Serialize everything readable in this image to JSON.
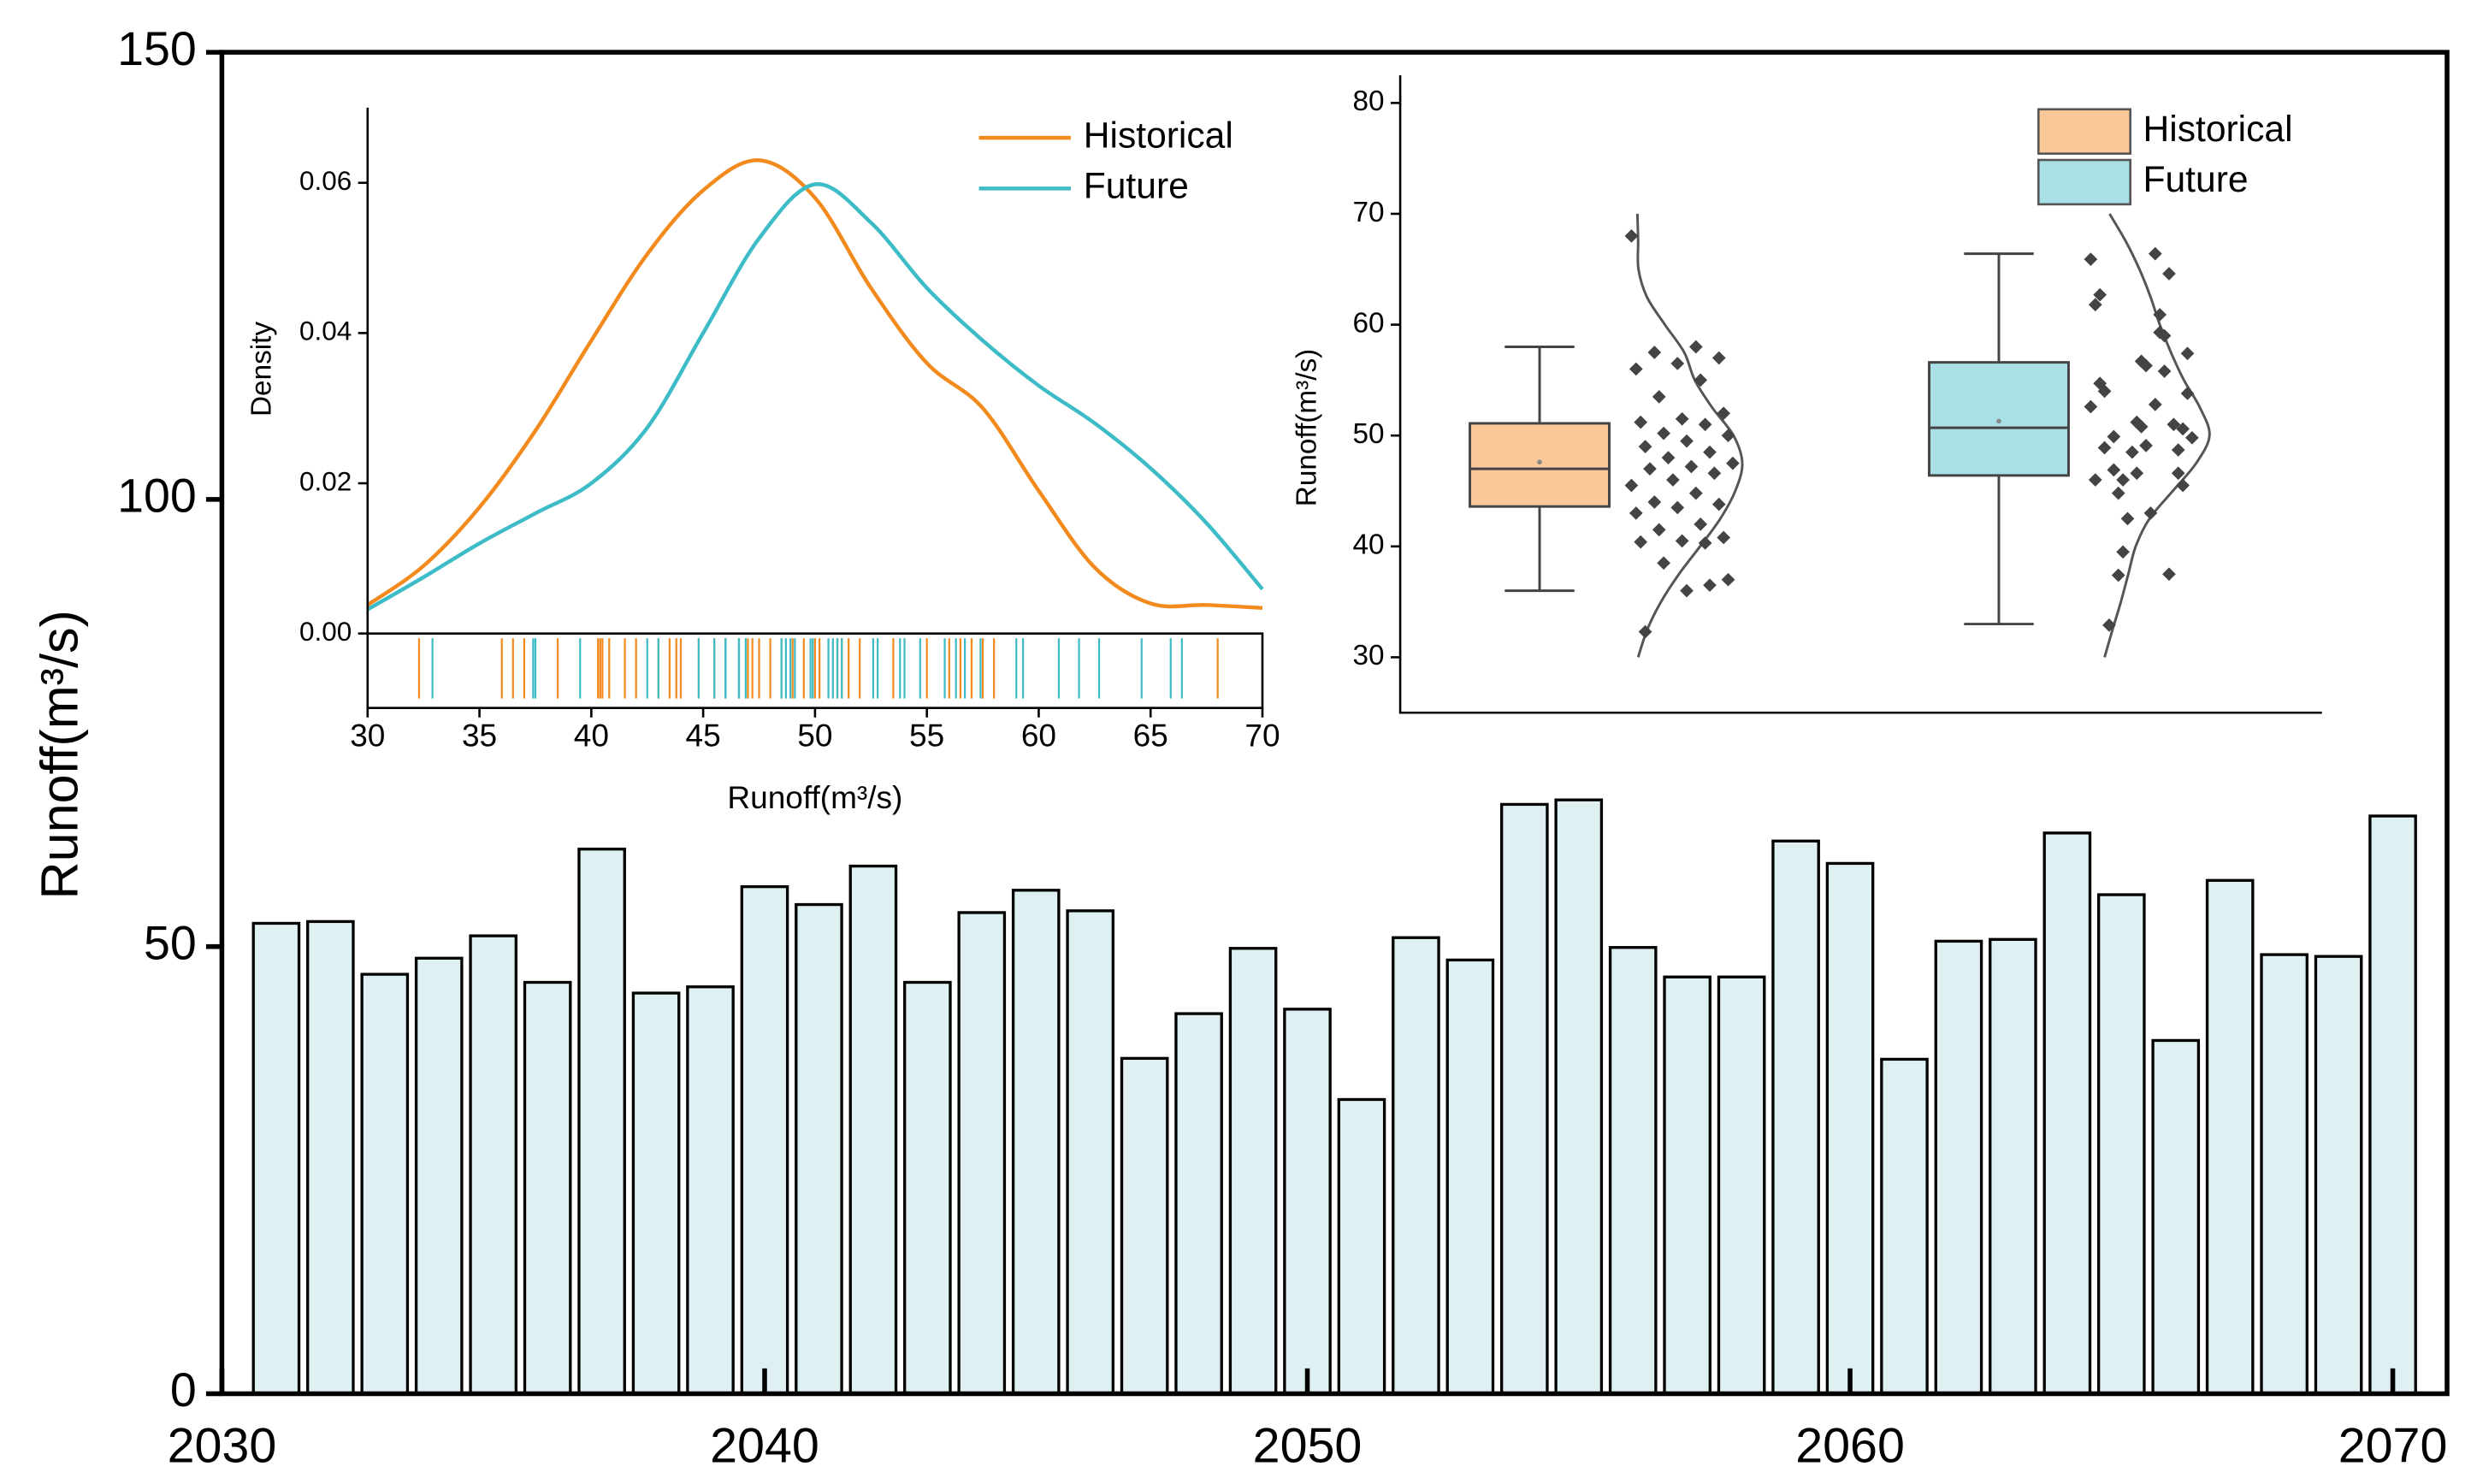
{
  "chart_data": [
    {
      "type": "bar",
      "ylabel": "Runoff(m³/s)",
      "x": [
        2031,
        2032,
        2033,
        2034,
        2035,
        2036,
        2037,
        2038,
        2039,
        2040,
        2041,
        2042,
        2043,
        2044,
        2045,
        2046,
        2047,
        2048,
        2049,
        2050,
        2051,
        2052,
        2053,
        2054,
        2055,
        2056,
        2057,
        2058,
        2059,
        2060,
        2061,
        2062,
        2063,
        2064,
        2065,
        2066,
        2067,
        2068,
        2069,
        2070
      ],
      "values": [
        52.6,
        52.8,
        46.9,
        48.7,
        51.2,
        46.0,
        60.9,
        44.8,
        45.5,
        56.7,
        54.7,
        59.0,
        46.0,
        53.8,
        56.3,
        54.0,
        37.5,
        42.5,
        49.8,
        43.0,
        32.9,
        51.0,
        48.5,
        65.9,
        66.4,
        49.9,
        46.6,
        46.6,
        61.8,
        59.3,
        37.4,
        50.6,
        50.8,
        62.7,
        55.8,
        39.5,
        57.4,
        49.1,
        48.9,
        64.6
      ],
      "color": "#dff0f3",
      "xlim": [
        2030,
        2071
      ],
      "ylim": [
        0,
        150
      ],
      "xticks": [
        2030,
        2040,
        2050,
        2060,
        2070
      ],
      "yticks": [
        0,
        50,
        100,
        150
      ]
    },
    {
      "type": "line",
      "xlabel": "Runoff(m³/s)",
      "ylabel": "Density",
      "x": [
        30,
        32.5,
        35,
        37.5,
        40,
        42.5,
        45,
        47.5,
        50,
        52.5,
        55,
        57.5,
        60,
        62.5,
        65,
        67.5,
        70
      ],
      "series": [
        {
          "name": "Historical",
          "color": "#f28a1e",
          "values": [
            0.0038,
            0.009,
            0.0168,
            0.027,
            0.039,
            0.0505,
            0.059,
            0.063,
            0.058,
            0.046,
            0.036,
            0.03,
            0.019,
            0.0088,
            0.004,
            0.0038,
            0.0034
          ]
        },
        {
          "name": "Future",
          "color": "#3dbcc7",
          "values": [
            0.0032,
            0.0075,
            0.012,
            0.016,
            0.02,
            0.0274,
            0.04,
            0.0526,
            0.0598,
            0.0547,
            0.046,
            0.039,
            0.033,
            0.028,
            0.022,
            0.0147,
            0.0059
          ]
        }
      ],
      "xlim": [
        30,
        70
      ],
      "ylim": [
        0,
        0.07
      ],
      "xticks": [
        30,
        35,
        40,
        45,
        50,
        55,
        60,
        65,
        70
      ],
      "yticks": [
        {
          "value": 0,
          "label": "0.00"
        },
        {
          "value": 0.02,
          "label": "0.02"
        },
        {
          "value": 0.04,
          "label": "0.04"
        },
        {
          "value": 0.06,
          "label": "0.06"
        }
      ],
      "legend": "upper right",
      "rug": true
    },
    {
      "type": "box",
      "ylabel": "Runoff(m³/s)",
      "series": [
        {
          "name": "Historical",
          "color": "#fac898",
          "min": 36,
          "q1": 43.6,
          "median": 47,
          "q3": 51.1,
          "max": 58,
          "mean": 47.6,
          "points": [
            68.0,
            58.0,
            57.5,
            57.0,
            56.5,
            56.0,
            55.0,
            53.5,
            52.0,
            51.5,
            51.2,
            51.0,
            50.2,
            50.0,
            49.5,
            49.0,
            48.5,
            48.0,
            47.5,
            47.2,
            47.0,
            46.6,
            46.0,
            45.5,
            44.8,
            44.0,
            43.8,
            43.5,
            43.0,
            42.0,
            41.5,
            40.8,
            40.5,
            40.4,
            40.3,
            38.5,
            37.0,
            36.0,
            32.3,
            36.5
          ]
        },
        {
          "name": "Future",
          "color": "#a9e0e6",
          "min": 33,
          "q1": 46.4,
          "median": 50.7,
          "q3": 56.6,
          "max": 66.4,
          "mean": 51.3
        }
      ],
      "ylim": [
        25,
        82.5
      ],
      "yticks": [
        30,
        40,
        50,
        60,
        70,
        80
      ],
      "legend": "upper right"
    }
  ]
}
